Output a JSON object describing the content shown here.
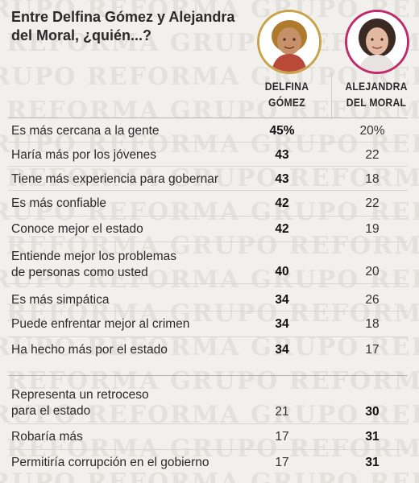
{
  "title": "Entre Delfina Gómez y Alejandra del Moral, ¿quién...?",
  "candidates": [
    {
      "name_line1": "DELFINA",
      "name_line2": "GÓMEZ",
      "avatar_icon": "woman-portrait-icon",
      "accent": "#c9a24a"
    },
    {
      "name_line1": "ALEJANDRA",
      "name_line2": "DEL MORAL",
      "avatar_icon": "woman-portrait-icon",
      "accent": "#c22a6a"
    }
  ],
  "watermark": "GRUPO REFORMA",
  "chart_data": {
    "type": "table",
    "columns": [
      "DELFINA GÓMEZ",
      "ALEJANDRA DEL MORAL"
    ],
    "rows": [
      {
        "label_lines": [
          "Es más cercana a la gente"
        ],
        "values": [
          "45%",
          "20%"
        ],
        "leader": 0
      },
      {
        "label_lines": [
          "Haría más por los jóvenes"
        ],
        "values": [
          "43",
          "22"
        ],
        "leader": 0
      },
      {
        "label_lines": [
          "Tiene más experiencia para gobernar"
        ],
        "values": [
          "43",
          "18"
        ],
        "leader": 0
      },
      {
        "label_lines": [
          "Es más confiable"
        ],
        "values": [
          "42",
          "22"
        ],
        "leader": 0
      },
      {
        "label_lines": [
          "Conoce mejor el estado"
        ],
        "values": [
          "42",
          "19"
        ],
        "leader": 0
      },
      {
        "label_lines": [
          "Entiende mejor los problemas",
          "de personas como usted"
        ],
        "values": [
          "40",
          "20"
        ],
        "leader": 0
      },
      {
        "label_lines": [
          "Es más simpática"
        ],
        "values": [
          "34",
          "26"
        ],
        "leader": 0
      },
      {
        "label_lines": [
          "Puede enfrentar mejor al crimen"
        ],
        "values": [
          "34",
          "18"
        ],
        "leader": 0
      },
      {
        "label_lines": [
          "Ha hecho más por el estado"
        ],
        "values": [
          "34",
          "17"
        ],
        "leader": 0
      },
      {
        "label_lines": [
          "Representa un retroceso",
          "para el estado"
        ],
        "values": [
          "21",
          "30"
        ],
        "leader": 1
      },
      {
        "label_lines": [
          "Robaría más"
        ],
        "values": [
          "17",
          "31"
        ],
        "leader": 1
      },
      {
        "label_lines": [
          "Permitiría corrupción en el gobierno"
        ],
        "values": [
          "17",
          "31"
        ],
        "leader": 1
      }
    ]
  }
}
